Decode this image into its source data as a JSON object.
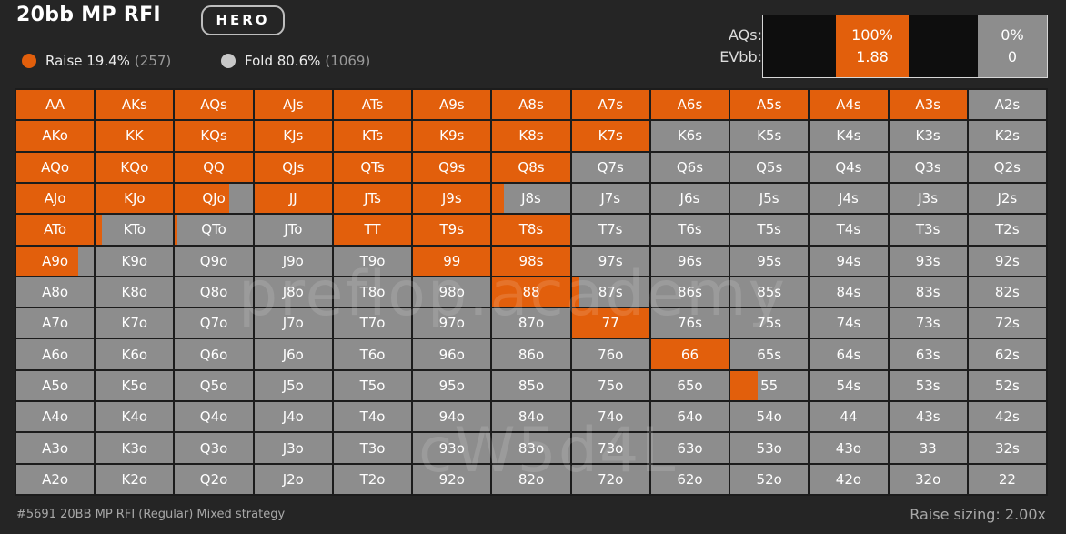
{
  "header": {
    "title": "20bb MP RFI",
    "hero_label": "HERO"
  },
  "legend": {
    "raise_label": "Raise 19.4%",
    "raise_count": "(257)",
    "fold_label": "Fold 80.6%",
    "fold_count": "(1069)"
  },
  "colors": {
    "raise": "#e25f0c",
    "fold": "#8d8d8d",
    "background": "#252525"
  },
  "info": {
    "hand_label": "AQs:",
    "ev_label": "EVbb:",
    "raise_pct": "100%",
    "raise_ev": "1.88",
    "fold_pct": "0%",
    "fold_ev": "0"
  },
  "matrix": {
    "rows": [
      [
        [
          "AA",
          1
        ],
        [
          "AKs",
          1
        ],
        [
          "AQs",
          1
        ],
        [
          "AJs",
          1
        ],
        [
          "ATs",
          1
        ],
        [
          "A9s",
          1
        ],
        [
          "A8s",
          1
        ],
        [
          "A7s",
          1
        ],
        [
          "A6s",
          1
        ],
        [
          "A5s",
          1
        ],
        [
          "A4s",
          1
        ],
        [
          "A3s",
          1
        ],
        [
          "A2s",
          0
        ]
      ],
      [
        [
          "AKo",
          1
        ],
        [
          "KK",
          1
        ],
        [
          "KQs",
          1
        ],
        [
          "KJs",
          1
        ],
        [
          "KTs",
          1
        ],
        [
          "K9s",
          1
        ],
        [
          "K8s",
          1
        ],
        [
          "K7s",
          1
        ],
        [
          "K6s",
          0
        ],
        [
          "K5s",
          0
        ],
        [
          "K4s",
          0
        ],
        [
          "K3s",
          0
        ],
        [
          "K2s",
          0
        ]
      ],
      [
        [
          "AQo",
          1
        ],
        [
          "KQo",
          1
        ],
        [
          "QQ",
          1
        ],
        [
          "QJs",
          1
        ],
        [
          "QTs",
          1
        ],
        [
          "Q9s",
          1
        ],
        [
          "Q8s",
          1
        ],
        [
          "Q7s",
          0
        ],
        [
          "Q6s",
          0
        ],
        [
          "Q5s",
          0
        ],
        [
          "Q4s",
          0
        ],
        [
          "Q3s",
          0
        ],
        [
          "Q2s",
          0
        ]
      ],
      [
        [
          "AJo",
          1
        ],
        [
          "KJo",
          1
        ],
        [
          "QJo",
          0.7
        ],
        [
          "JJ",
          1
        ],
        [
          "JTs",
          1
        ],
        [
          "J9s",
          1
        ],
        [
          "J8s",
          0.15
        ],
        [
          "J7s",
          0
        ],
        [
          "J6s",
          0
        ],
        [
          "J5s",
          0
        ],
        [
          "J4s",
          0
        ],
        [
          "J3s",
          0
        ],
        [
          "J2s",
          0
        ]
      ],
      [
        [
          "ATo",
          1
        ],
        [
          "KTo",
          0.08
        ],
        [
          "QTo",
          0.03
        ],
        [
          "JTo",
          0
        ],
        [
          "TT",
          1
        ],
        [
          "T9s",
          1
        ],
        [
          "T8s",
          1
        ],
        [
          "T7s",
          0
        ],
        [
          "T6s",
          0
        ],
        [
          "T5s",
          0
        ],
        [
          "T4s",
          0
        ],
        [
          "T3s",
          0
        ],
        [
          "T2s",
          0
        ]
      ],
      [
        [
          "A9o",
          0.8
        ],
        [
          "K9o",
          0
        ],
        [
          "Q9o",
          0
        ],
        [
          "J9o",
          0
        ],
        [
          "T9o",
          0
        ],
        [
          "99",
          1
        ],
        [
          "98s",
          1
        ],
        [
          "97s",
          0
        ],
        [
          "96s",
          0
        ],
        [
          "95s",
          0
        ],
        [
          "94s",
          0
        ],
        [
          "93s",
          0
        ],
        [
          "92s",
          0
        ]
      ],
      [
        [
          "A8o",
          0
        ],
        [
          "K8o",
          0
        ],
        [
          "Q8o",
          0
        ],
        [
          "J8o",
          0
        ],
        [
          "T8o",
          0
        ],
        [
          "98o",
          0
        ],
        [
          "88",
          1
        ],
        [
          "87s",
          0.1
        ],
        [
          "86s",
          0
        ],
        [
          "85s",
          0
        ],
        [
          "84s",
          0
        ],
        [
          "83s",
          0
        ],
        [
          "82s",
          0
        ]
      ],
      [
        [
          "A7o",
          0
        ],
        [
          "K7o",
          0
        ],
        [
          "Q7o",
          0
        ],
        [
          "J7o",
          0
        ],
        [
          "T7o",
          0
        ],
        [
          "97o",
          0
        ],
        [
          "87o",
          0
        ],
        [
          "77",
          1
        ],
        [
          "76s",
          0
        ],
        [
          "75s",
          0
        ],
        [
          "74s",
          0
        ],
        [
          "73s",
          0
        ],
        [
          "72s",
          0
        ]
      ],
      [
        [
          "A6o",
          0
        ],
        [
          "K6o",
          0
        ],
        [
          "Q6o",
          0
        ],
        [
          "J6o",
          0
        ],
        [
          "T6o",
          0
        ],
        [
          "96o",
          0
        ],
        [
          "86o",
          0
        ],
        [
          "76o",
          0
        ],
        [
          "66",
          1
        ],
        [
          "65s",
          0
        ],
        [
          "64s",
          0
        ],
        [
          "63s",
          0
        ],
        [
          "62s",
          0
        ]
      ],
      [
        [
          "A5o",
          0
        ],
        [
          "K5o",
          0
        ],
        [
          "Q5o",
          0
        ],
        [
          "J5o",
          0
        ],
        [
          "T5o",
          0
        ],
        [
          "95o",
          0
        ],
        [
          "85o",
          0
        ],
        [
          "75o",
          0
        ],
        [
          "65o",
          0
        ],
        [
          "55",
          0.35
        ],
        [
          "54s",
          0
        ],
        [
          "53s",
          0
        ],
        [
          "52s",
          0
        ]
      ],
      [
        [
          "A4o",
          0
        ],
        [
          "K4o",
          0
        ],
        [
          "Q4o",
          0
        ],
        [
          "J4o",
          0
        ],
        [
          "T4o",
          0
        ],
        [
          "94o",
          0
        ],
        [
          "84o",
          0
        ],
        [
          "74o",
          0
        ],
        [
          "64o",
          0
        ],
        [
          "54o",
          0
        ],
        [
          "44",
          0
        ],
        [
          "43s",
          0
        ],
        [
          "42s",
          0
        ]
      ],
      [
        [
          "A3o",
          0
        ],
        [
          "K3o",
          0
        ],
        [
          "Q3o",
          0
        ],
        [
          "J3o",
          0
        ],
        [
          "T3o",
          0
        ],
        [
          "93o",
          0
        ],
        [
          "83o",
          0
        ],
        [
          "73o",
          0
        ],
        [
          "63o",
          0
        ],
        [
          "53o",
          0
        ],
        [
          "43o",
          0
        ],
        [
          "33",
          0
        ],
        [
          "32s",
          0
        ]
      ],
      [
        [
          "A2o",
          0
        ],
        [
          "K2o",
          0
        ],
        [
          "Q2o",
          0
        ],
        [
          "J2o",
          0
        ],
        [
          "T2o",
          0
        ],
        [
          "92o",
          0
        ],
        [
          "82o",
          0
        ],
        [
          "72o",
          0
        ],
        [
          "62o",
          0
        ],
        [
          "52o",
          0
        ],
        [
          "42o",
          0
        ],
        [
          "32o",
          0
        ],
        [
          "22",
          0
        ]
      ]
    ]
  },
  "watermarks": {
    "site": "preflop.academy",
    "code": "cW5d4L"
  },
  "footer": {
    "description": "#5691 20BB MP RFI (Regular) Mixed strategy",
    "sizing": "Raise sizing: 2.00x"
  }
}
